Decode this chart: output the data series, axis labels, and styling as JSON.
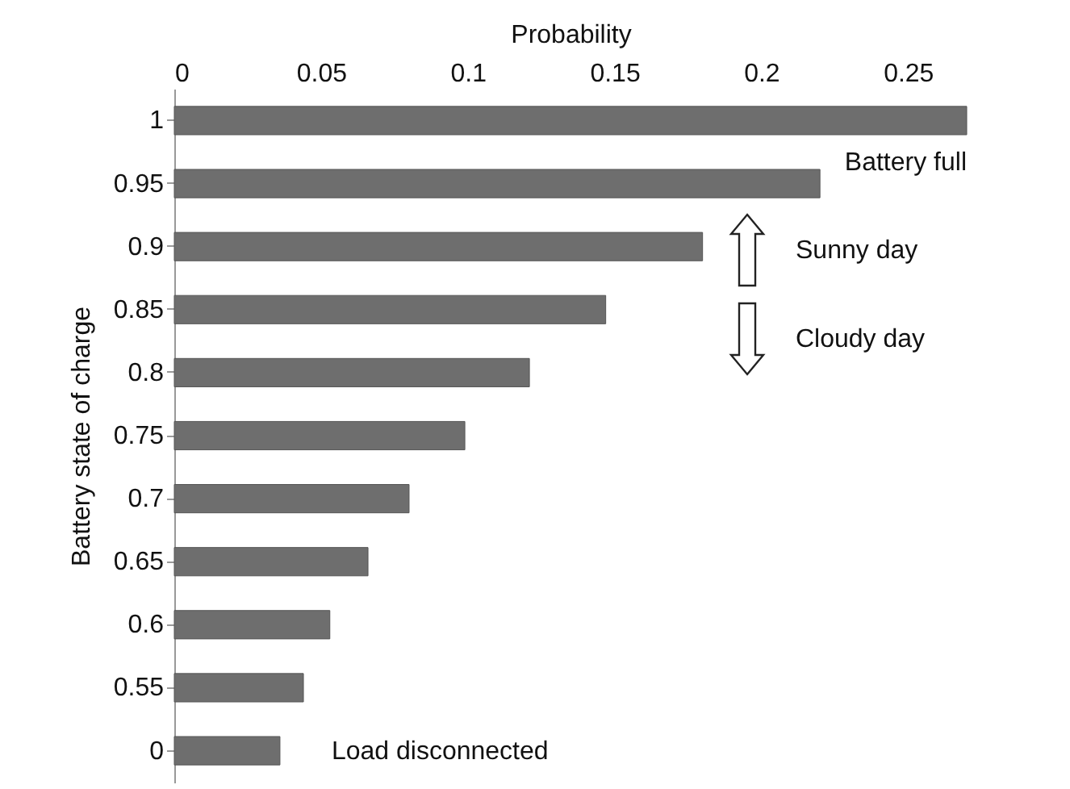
{
  "chart_data": {
    "type": "bar",
    "orientation": "horizontal",
    "xlabel": "Probability",
    "ylabel": "Battery state of charge",
    "categories": [
      "1",
      "0.95",
      "0.9",
      "0.85",
      "0.8",
      "0.75",
      "0.7",
      "0.65",
      "0.6",
      "0.55",
      "0"
    ],
    "values": [
      0.27,
      0.22,
      0.18,
      0.147,
      0.121,
      0.099,
      0.08,
      0.066,
      0.053,
      0.044,
      0.036
    ],
    "color": "#6e6e6e",
    "xlim": [
      0,
      0.27
    ],
    "xticks": [
      0,
      0.05,
      0.1,
      0.15,
      0.2,
      0.25
    ],
    "grid": false,
    "annotations": [
      {
        "text": "Battery full",
        "x": 0.27,
        "y": "1"
      },
      "Sunny day",
      "Cloudy day",
      {
        "text": "Load disconnected",
        "x": 0.036,
        "y": "0"
      }
    ]
  }
}
